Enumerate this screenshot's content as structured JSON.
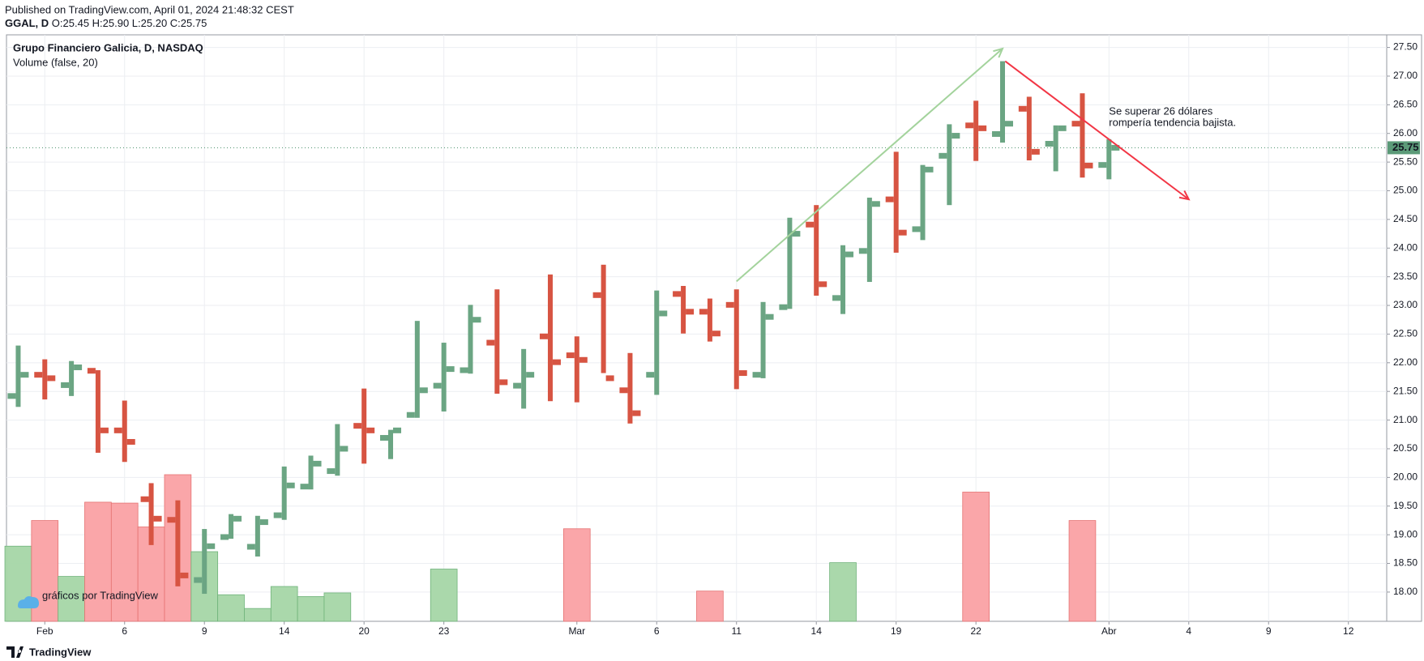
{
  "header": {
    "published": "Published on TradingView.com, April 01, 2024 21:48:32 CEST",
    "symbol": "GGAL, D",
    "ohlc_text": "O:25.45 H:25.90 L:25.20 C:25.75"
  },
  "footer": {
    "brand": "TradingView"
  },
  "chart_data": {
    "type": "ohlc",
    "title": "Grupo Financiero Galicia, D, NASDAQ",
    "subtitle": "Volume (false, 20)",
    "watermark": "gráficos por TradingView",
    "x": [
      0,
      1,
      2,
      3,
      4,
      5,
      6,
      7,
      8,
      9,
      10,
      11,
      12,
      13,
      14,
      15,
      16,
      17,
      18,
      19,
      20,
      21,
      22,
      23,
      24,
      25,
      26,
      27,
      28,
      29,
      30,
      31,
      32,
      33,
      34,
      35,
      36,
      37,
      38,
      39,
      40,
      41
    ],
    "open": [
      21.42,
      21.79,
      21.61,
      21.86,
      20.82,
      19.62,
      19.26,
      18.21,
      18.96,
      18.79,
      19.34,
      19.84,
      20.11,
      20.9,
      20.69,
      21.09,
      21.6,
      21.87,
      22.35,
      21.6,
      22.46,
      22.13,
      23.18,
      21.52,
      21.79,
      23.2,
      22.89,
      23.01,
      21.79,
      22.97,
      24.41,
      23.13,
      23.95,
      24.85,
      24.33,
      25.61,
      26.14,
      25.99,
      26.43,
      25.82,
      26.17,
      25.45
    ],
    "high": [
      22.3,
      22.06,
      22.03,
      21.87,
      21.34,
      19.9,
      19.6,
      19.1,
      19.36,
      19.33,
      20.19,
      20.38,
      20.93,
      21.55,
      20.83,
      22.73,
      22.35,
      23.01,
      23.28,
      22.24,
      23.54,
      22.46,
      23.71,
      22.17,
      23.26,
      23.34,
      23.12,
      23.28,
      23.06,
      24.53,
      24.75,
      24.05,
      24.88,
      25.68,
      25.45,
      26.16,
      26.57,
      27.26,
      26.64,
      26.14,
      26.7,
      25.9
    ],
    "low": [
      21.23,
      21.36,
      21.42,
      20.43,
      20.27,
      18.82,
      18.1,
      17.97,
      18.93,
      18.62,
      19.26,
      19.79,
      20.03,
      20.24,
      20.32,
      21.04,
      21.15,
      21.81,
      21.46,
      21.2,
      21.33,
      21.31,
      21.82,
      20.94,
      21.44,
      22.51,
      22.37,
      21.54,
      21.73,
      22.94,
      23.17,
      22.85,
      23.41,
      23.92,
      24.14,
      24.75,
      25.52,
      25.84,
      25.53,
      25.34,
      25.23,
      25.2
    ],
    "close": [
      21.79,
      21.73,
      21.92,
      20.82,
      20.62,
      19.28,
      18.29,
      18.8,
      19.28,
      19.22,
      19.86,
      20.24,
      20.5,
      20.82,
      20.82,
      21.52,
      21.89,
      22.75,
      21.66,
      21.79,
      22.01,
      22.05,
      21.73,
      21.12,
      22.86,
      22.89,
      22.51,
      21.82,
      22.8,
      24.25,
      23.37,
      23.89,
      24.77,
      24.27,
      25.37,
      25.96,
      26.09,
      26.17,
      25.68,
      26.09,
      25.44,
      25.75
    ],
    "volume": [
      82,
      110,
      49,
      130,
      129,
      103,
      160,
      76,
      29,
      14,
      38,
      27,
      31,
      null,
      null,
      null,
      57,
      null,
      null,
      null,
      null,
      101,
      null,
      null,
      null,
      null,
      33,
      null,
      null,
      null,
      null,
      64,
      null,
      null,
      null,
      null,
      141,
      null,
      null,
      null,
      110,
      null
    ],
    "up_color": "#6ba583",
    "down_color": "#d75442",
    "volume_up_color": "#a5d6a7",
    "volume_down_color": "#faa1a4",
    "vlim": [
      0,
      640
    ],
    "xlim": [
      -0.44,
      51.44
    ],
    "ylim": [
      17.49,
      27.72
    ],
    "xticks": [
      {
        "value": 1,
        "label": "Feb"
      },
      {
        "value": 4,
        "label": "6"
      },
      {
        "value": 7,
        "label": "9"
      },
      {
        "value": 10,
        "label": "14"
      },
      {
        "value": 13,
        "label": "20"
      },
      {
        "value": 16,
        "label": "23"
      },
      {
        "value": 21,
        "label": "Mar"
      },
      {
        "value": 24,
        "label": "6"
      },
      {
        "value": 27,
        "label": "11"
      },
      {
        "value": 30,
        "label": "14"
      },
      {
        "value": 33,
        "label": "19"
      },
      {
        "value": 36,
        "label": "22"
      },
      {
        "value": 41,
        "label": "Abr"
      },
      {
        "value": 44,
        "label": "4"
      },
      {
        "value": 47,
        "label": "9"
      },
      {
        "value": 50,
        "label": "12"
      }
    ],
    "yticks": [
      {
        "value": 18,
        "label": "18.00"
      },
      {
        "value": 18.5,
        "label": "18.50"
      },
      {
        "value": 19,
        "label": "19.00"
      },
      {
        "value": 19.5,
        "label": "19.50"
      },
      {
        "value": 20,
        "label": "20.00"
      },
      {
        "value": 20.5,
        "label": "20.50"
      },
      {
        "value": 21,
        "label": "21.00"
      },
      {
        "value": 21.5,
        "label": "21.50"
      },
      {
        "value": 22,
        "label": "22.00"
      },
      {
        "value": 22.5,
        "label": "22.50"
      },
      {
        "value": 23,
        "label": "23.00"
      },
      {
        "value": 23.5,
        "label": "23.50"
      },
      {
        "value": 24,
        "label": "24.00"
      },
      {
        "value": 24.5,
        "label": "24.50"
      },
      {
        "value": 25,
        "label": "25.00"
      },
      {
        "value": 25.5,
        "label": "25.50"
      },
      {
        "value": 26,
        "label": "26.00"
      },
      {
        "value": 26.5,
        "label": "26.50"
      },
      {
        "value": 27,
        "label": "27.00"
      },
      {
        "value": 27.5,
        "label": "27.50"
      }
    ],
    "grid": true,
    "last_price": 25.75,
    "last_price_color": "#5b9a78",
    "trend_lines": [
      {
        "x": [
          27,
          37
        ],
        "y": [
          23.42,
          27.48
        ],
        "color": "#a3d39c"
      },
      {
        "x": [
          37.1,
          44
        ],
        "y": [
          27.26,
          24.85
        ],
        "color": "#f23645"
      }
    ],
    "note": {
      "lines": [
        "Se superar 26 dólares",
        "rompería tendencia bajista."
      ],
      "x": 41,
      "y": 26.38,
      "color": "#6a7f98"
    }
  }
}
